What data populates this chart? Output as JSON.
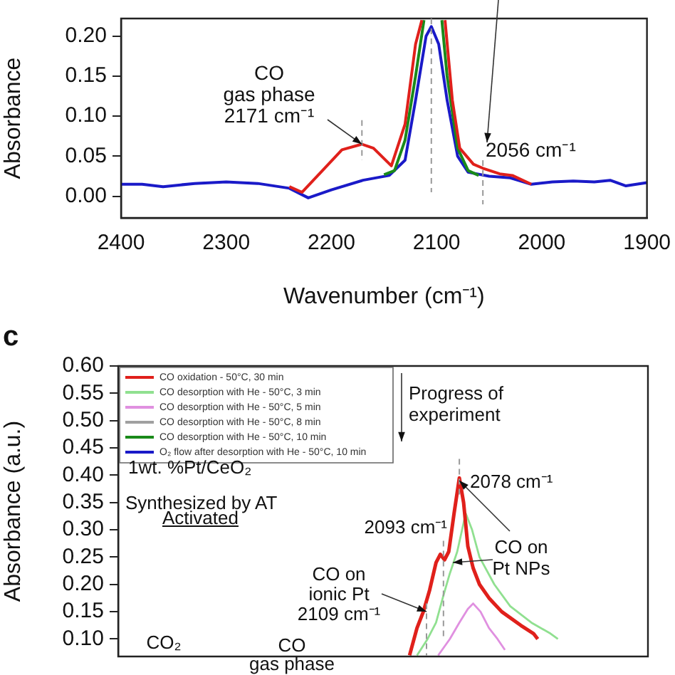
{
  "chart_data": [
    {
      "type": "line",
      "xlabel": "Wavenumber (cm⁻¹)",
      "ylabel": "Absorbance",
      "xlim": [
        2400,
        1900
      ],
      "xticks": [
        2400,
        2300,
        2200,
        2100,
        2000,
        1900
      ],
      "ylim": [
        -0.027,
        0.222
      ],
      "yticks": [
        {
          "value": 0,
          "label": "0.00"
        },
        {
          "value": 0.05,
          "label": "0.05"
        },
        {
          "value": 0.1,
          "label": "0.10"
        },
        {
          "value": 0.15,
          "label": "0.15"
        },
        {
          "value": 0.2,
          "label": "0.20"
        }
      ],
      "series": [
        {
          "color": "#e0201b",
          "x": [
            2240,
            2228,
            2210,
            2190,
            2171,
            2160,
            2143,
            2130,
            2120,
            2114,
            2100,
            2092,
            2085,
            2078,
            2065,
            2056,
            2040,
            2028,
            2010
          ],
          "values": [
            0.012,
            0.005,
            0.03,
            0.058,
            0.065,
            0.06,
            0.038,
            0.09,
            0.19,
            0.22,
            null,
            0.22,
            0.12,
            0.06,
            0.04,
            0.035,
            0.028,
            0.026,
            0.015
          ]
        },
        {
          "color": "#1a8a1a",
          "x": [
            2150,
            2140,
            2130,
            2120,
            2112,
            2100,
            2095,
            2090,
            2080,
            2070,
            2060
          ],
          "values": [
            0.027,
            0.032,
            0.07,
            0.15,
            0.22,
            null,
            0.22,
            0.15,
            0.06,
            0.032,
            0.026
          ]
        },
        {
          "color": "#1a1ac8",
          "x": [
            2400,
            2380,
            2360,
            2330,
            2300,
            2270,
            2240,
            2222,
            2200,
            2170,
            2145,
            2130,
            2120,
            2110,
            2105,
            2098,
            2090,
            2080,
            2070,
            2050,
            2030,
            2010,
            1990,
            1970,
            1950,
            1935,
            1920,
            1900
          ],
          "values": [
            0.015,
            0.015,
            0.012,
            0.016,
            0.018,
            0.016,
            0.01,
            -0.002,
            0.008,
            0.02,
            0.026,
            0.045,
            0.12,
            0.2,
            0.212,
            0.19,
            0.12,
            0.05,
            0.03,
            0.025,
            0.023,
            0.015,
            0.018,
            0.019,
            0.018,
            0.02,
            0.013,
            0.017
          ]
        }
      ],
      "ref_lines": [
        {
          "axis": "x",
          "value": 2171,
          "line_style": "dashed",
          "color": "#999999"
        },
        {
          "axis": "x",
          "value": 2105,
          "line_style": "dashed",
          "color": "#999999"
        },
        {
          "axis": "x",
          "value": 2056,
          "line_style": "dashed",
          "color": "#999999"
        }
      ],
      "annotations": [
        {
          "text": "CO\ngas phase\n2171 cm⁻¹",
          "x": 2171,
          "y": 0.065
        },
        {
          "text": "2056 cm⁻¹",
          "x": 2056,
          "y": 0.035
        }
      ]
    },
    {
      "type": "line",
      "ylabel": "Absorbance (a.u.)",
      "xlim": [
        2400,
        1900
      ],
      "ylim": [
        0.068,
        0.6
      ],
      "yticks": [
        {
          "value": 0.1,
          "label": "0.10"
        },
        {
          "value": 0.15,
          "label": "0.15"
        },
        {
          "value": 0.2,
          "label": "0.20"
        },
        {
          "value": 0.25,
          "label": "0.25"
        },
        {
          "value": 0.3,
          "label": "0.30"
        },
        {
          "value": 0.35,
          "label": "0.35"
        },
        {
          "value": 0.4,
          "label": "0.40"
        },
        {
          "value": 0.45,
          "label": "0.45"
        },
        {
          "value": 0.5,
          "label": "0.50"
        },
        {
          "value": 0.55,
          "label": "0.55"
        },
        {
          "value": 0.6,
          "label": "0.60"
        }
      ],
      "tick_labels": "y",
      "legend": "top left",
      "series": [
        {
          "name": "CO oxidation - 50°C, 30 min",
          "color": "#e0201b",
          "x": [
            2125,
            2118,
            2112,
            2106,
            2100,
            2096,
            2092,
            2088,
            2083,
            2078,
            2074,
            2070,
            2065,
            2059,
            2050,
            2038,
            2020,
            2008,
            2004
          ],
          "values": [
            0.07,
            0.12,
            0.15,
            0.19,
            0.24,
            0.255,
            0.245,
            0.26,
            0.33,
            0.395,
            0.35,
            0.27,
            0.23,
            0.2,
            0.175,
            0.15,
            0.125,
            0.11,
            0.1
          ]
        },
        {
          "name": "CO desorption with He - 50°C, 3 min",
          "color": "#90e090",
          "x": [
            2118,
            2108,
            2100,
            2093,
            2087,
            2080,
            2072,
            2066,
            2059,
            2045,
            2030,
            2010,
            1992,
            1985
          ],
          "values": [
            0.07,
            0.1,
            0.13,
            0.18,
            0.22,
            0.26,
            0.33,
            0.3,
            0.25,
            0.2,
            0.16,
            0.13,
            0.11,
            0.1
          ]
        },
        {
          "name": "CO desorption with He - 50°C, 5 min",
          "color": "#e090e0",
          "x": [
            2098,
            2087,
            2078,
            2070,
            2065,
            2058,
            2050,
            2042,
            2035
          ],
          "values": [
            0.07,
            0.1,
            0.13,
            0.155,
            0.165,
            0.15,
            0.12,
            0.1,
            0.08
          ]
        },
        {
          "name": "CO desorption with He - 50°C, 8 min",
          "color": "#a0a0a0"
        },
        {
          "name": "CO desorption with He - 50°C, 10 min",
          "color": "#1a8a1a"
        },
        {
          "name": "O₂ flow after desorption with He - 50°C, 10 min",
          "color": "#1a1ac8"
        }
      ],
      "ref_lines": [
        {
          "axis": "x",
          "value": 2109,
          "line_style": "dashed",
          "color": "#999999"
        },
        {
          "axis": "x",
          "value": 2093,
          "line_style": "dashed",
          "color": "#999999"
        },
        {
          "axis": "x",
          "value": 2078,
          "line_style": "dashed",
          "color": "#999999"
        }
      ],
      "annotations": [
        "c",
        "Progress of\nexperiment",
        "1wt. %Pt/CeO₂",
        "Synthesized by AT",
        "Activated",
        {
          "text": "2078 cm⁻¹",
          "x": 2078,
          "y": 0.395
        },
        {
          "text": "2093 cm⁻¹",
          "x": 2093,
          "y": 0.25
        },
        {
          "text": "CO on\nPt NPs",
          "x": 2078,
          "y": 0.39
        },
        {
          "text": "CO on\nionic Pt\n2109 cm⁻¹",
          "x": 2109,
          "y": 0.15
        },
        "CO₂",
        "CO\ngas phase"
      ]
    }
  ]
}
